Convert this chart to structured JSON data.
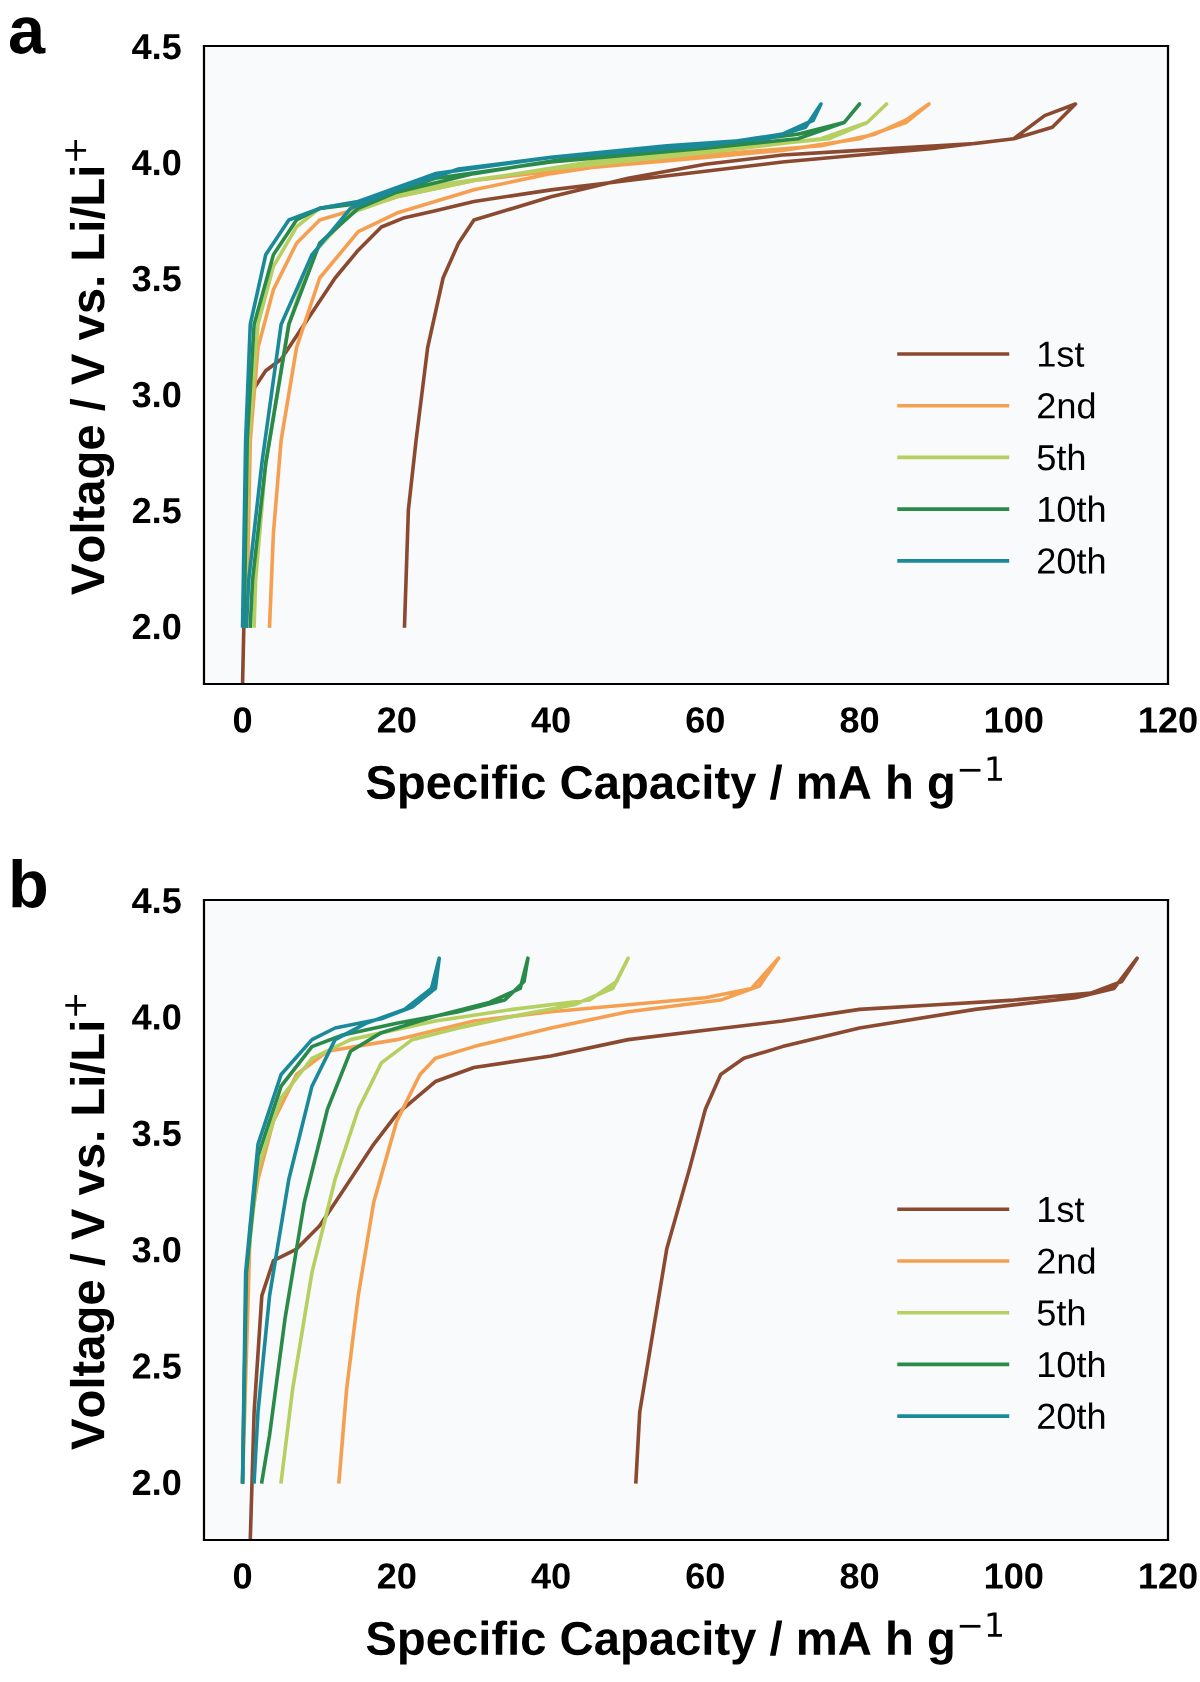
{
  "chart_data": [
    {
      "type": "line",
      "xlabel": "Specific Capacity / mA h g$^{−1}$",
      "ylabel": "Voltage / V vs. Li/Li$^{+}$",
      "annotations": [
        "a"
      ],
      "xlim": [
        -5,
        120
      ],
      "ylim": [
        1.75,
        4.5
      ],
      "xticks": [
        0,
        20,
        40,
        60,
        80,
        100,
        120
      ],
      "yticks": [
        {
          "value": 2.0,
          "label": "2.0"
        },
        {
          "value": 2.5,
          "label": "2.5"
        },
        {
          "value": 3.0,
          "label": "3.0"
        },
        {
          "value": 3.5,
          "label": "3.5"
        },
        {
          "value": 4.0,
          "label": "4.0"
        },
        {
          "value": 4.5,
          "label": "4.5"
        }
      ],
      "grid": false,
      "legend": "right",
      "line_style": "solid",
      "marker": "none",
      "series": [
        {
          "name": "1st",
          "color": "#8b4a2f",
          "x": [
            0,
            0.5,
            1,
            3,
            5,
            7,
            9,
            12,
            15,
            18,
            21,
            25,
            30,
            40,
            50,
            60,
            70,
            80,
            90,
            100,
            105,
            108,
            104,
            100,
            95,
            80,
            70,
            60,
            50,
            40,
            35,
            30,
            28,
            26,
            24,
            22.5,
            21.5,
            21
          ],
          "values": [
            1.75,
            2.5,
            3.0,
            3.1,
            3.15,
            3.25,
            3.35,
            3.5,
            3.62,
            3.72,
            3.76,
            3.79,
            3.83,
            3.88,
            3.92,
            3.96,
            4.0,
            4.03,
            4.06,
            4.1,
            4.15,
            4.25,
            4.2,
            4.1,
            4.08,
            4.05,
            4.03,
            3.99,
            3.93,
            3.85,
            3.8,
            3.75,
            3.65,
            3.5,
            3.2,
            2.8,
            2.5,
            2.0
          ]
        },
        {
          "name": "2nd",
          "color": "#f5a050",
          "x": [
            0.5,
            1,
            2,
            4,
            7,
            10,
            15,
            20,
            30,
            40,
            50,
            60,
            70,
            80,
            86,
            89,
            86,
            82,
            75,
            60,
            50,
            40,
            30,
            20,
            15,
            10,
            7,
            5,
            4,
            3.5
          ],
          "values": [
            2.0,
            2.8,
            3.2,
            3.45,
            3.65,
            3.75,
            3.8,
            3.85,
            3.92,
            3.96,
            3.99,
            4.02,
            4.05,
            4.1,
            4.17,
            4.25,
            4.18,
            4.12,
            4.07,
            4.03,
            4.0,
            3.95,
            3.88,
            3.78,
            3.7,
            3.5,
            3.2,
            2.8,
            2.4,
            2.0
          ]
        },
        {
          "name": "5th",
          "color": "#b5d060",
          "x": [
            0.3,
            0.8,
            2,
            4,
            7,
            10,
            15,
            25,
            40,
            60,
            75,
            81,
            83.5,
            81,
            76,
            60,
            45,
            30,
            20,
            14,
            9,
            6,
            3,
            1.7,
            1.5
          ],
          "values": [
            2.0,
            2.8,
            3.3,
            3.55,
            3.72,
            3.8,
            3.83,
            3.9,
            3.97,
            4.04,
            4.1,
            4.17,
            4.25,
            4.17,
            4.1,
            4.05,
            4.0,
            3.92,
            3.85,
            3.78,
            3.6,
            3.3,
            2.7,
            2.2,
            2.0
          ]
        },
        {
          "name": "10th",
          "color": "#2a8a4a",
          "x": [
            0.2,
            0.6,
            1.5,
            4,
            7,
            10,
            15,
            25,
            40,
            60,
            72,
            78,
            80,
            78,
            72,
            60,
            45,
            30,
            20,
            15,
            10,
            6,
            3,
            1.3,
            1
          ],
          "values": [
            2.0,
            2.8,
            3.3,
            3.6,
            3.75,
            3.8,
            3.82,
            3.93,
            4.0,
            4.06,
            4.1,
            4.17,
            4.25,
            4.17,
            4.12,
            4.07,
            4.03,
            3.95,
            3.87,
            3.8,
            3.65,
            3.3,
            2.7,
            2.2,
            2.0
          ]
        },
        {
          "name": "20th",
          "color": "#1a8a9a",
          "x": [
            0,
            0.4,
            1,
            3,
            6,
            10,
            15,
            25,
            40,
            60,
            70,
            74,
            75,
            73,
            68,
            55,
            40,
            28,
            20,
            14,
            9,
            5,
            2.5,
            0.8,
            0.5
          ],
          "values": [
            2.0,
            2.8,
            3.3,
            3.6,
            3.75,
            3.8,
            3.83,
            3.95,
            4.02,
            4.07,
            4.12,
            4.18,
            4.25,
            4.15,
            4.1,
            4.07,
            4.02,
            3.97,
            3.88,
            3.8,
            3.6,
            3.3,
            2.7,
            2.2,
            2.0
          ]
        }
      ]
    },
    {
      "type": "line",
      "xlabel": "Specific Capacity / mA h g$^{−1}$",
      "ylabel": "Voltage / V vs. Li/Li$^{+}$",
      "annotations": [
        "b"
      ],
      "xlim": [
        -5,
        120
      ],
      "ylim": [
        1.75,
        4.5
      ],
      "xticks": [
        0,
        20,
        40,
        60,
        80,
        100,
        120
      ],
      "yticks": [
        {
          "value": 2.0,
          "label": "2.0"
        },
        {
          "value": 2.5,
          "label": "2.5"
        },
        {
          "value": 3.0,
          "label": "3.0"
        },
        {
          "value": 3.5,
          "label": "3.5"
        },
        {
          "value": 4.0,
          "label": "4.0"
        },
        {
          "value": 4.5,
          "label": "4.5"
        }
      ],
      "grid": false,
      "legend": "right",
      "line_style": "solid",
      "marker": "none",
      "series": [
        {
          "name": "1st",
          "color": "#8b4a2f",
          "x": [
            1,
            1.5,
            2.5,
            4,
            7,
            10,
            13,
            17,
            20,
            25,
            30,
            40,
            50,
            60,
            70,
            80,
            90,
            100,
            110,
            114,
            116,
            113,
            108,
            95,
            80,
            70,
            65,
            62,
            60,
            58,
            55,
            53,
            51.5,
            51
          ],
          "values": [
            1.75,
            2.3,
            2.8,
            2.95,
            3.0,
            3.1,
            3.25,
            3.45,
            3.58,
            3.72,
            3.78,
            3.83,
            3.9,
            3.94,
            3.98,
            4.03,
            4.05,
            4.07,
            4.1,
            4.15,
            4.25,
            4.12,
            4.08,
            4.03,
            3.95,
            3.87,
            3.82,
            3.75,
            3.6,
            3.35,
            3.0,
            2.6,
            2.3,
            2.0
          ]
        },
        {
          "name": "2nd",
          "color": "#f5a050",
          "x": [
            0,
            1,
            2,
            4,
            7,
            11,
            20,
            30,
            40,
            50,
            60,
            66,
            69.5,
            67,
            62,
            50,
            40,
            30,
            25,
            23,
            20,
            17,
            15,
            13.5,
            12.5
          ],
          "values": [
            2.0,
            3.1,
            3.3,
            3.55,
            3.75,
            3.85,
            3.9,
            3.98,
            4.02,
            4.05,
            4.08,
            4.12,
            4.25,
            4.13,
            4.07,
            4.02,
            3.95,
            3.87,
            3.82,
            3.75,
            3.55,
            3.2,
            2.8,
            2.4,
            2.0
          ]
        },
        {
          "name": "5th",
          "color": "#b5d060",
          "x": [
            0,
            0.5,
            2,
            5,
            9,
            14,
            25,
            35,
            45,
            48.5,
            50,
            48,
            43,
            35,
            28,
            22,
            18,
            15,
            12,
            9,
            6.5,
            5
          ],
          "values": [
            2.0,
            2.9,
            3.35,
            3.65,
            3.82,
            3.9,
            3.98,
            4.03,
            4.07,
            4.15,
            4.25,
            4.12,
            4.05,
            4.0,
            3.95,
            3.9,
            3.8,
            3.6,
            3.3,
            2.9,
            2.4,
            2.0
          ]
        },
        {
          "name": "10th",
          "color": "#2a8a4a",
          "x": [
            0,
            0.5,
            2,
            5,
            9,
            13,
            20,
            28,
            34,
            36.5,
            37,
            36,
            32,
            25,
            18,
            14,
            11,
            8,
            5.5,
            3.5,
            2.5
          ],
          "values": [
            2.0,
            2.9,
            3.4,
            3.7,
            3.87,
            3.92,
            3.97,
            4.02,
            4.07,
            4.15,
            4.25,
            4.12,
            4.06,
            4.0,
            3.93,
            3.85,
            3.6,
            3.2,
            2.7,
            2.2,
            2.0
          ]
        },
        {
          "name": "20th",
          "color": "#1a8a9a",
          "x": [
            0,
            0.4,
            2,
            5,
            9,
            12,
            18,
            22,
            25,
            25.5,
            24.5,
            21,
            16,
            12,
            9,
            6,
            3.5,
            2,
            1.5
          ],
          "values": [
            2.0,
            2.9,
            3.45,
            3.75,
            3.9,
            3.95,
            3.99,
            4.04,
            4.12,
            4.25,
            4.12,
            4.03,
            3.97,
            3.9,
            3.7,
            3.3,
            2.8,
            2.3,
            2.0
          ]
        }
      ]
    }
  ]
}
